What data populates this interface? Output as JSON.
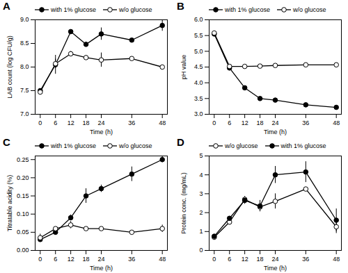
{
  "chart_data": [
    {
      "type": "line",
      "title": "A",
      "x_label": "Time (h)",
      "y_label": "LAB count (log CFU/g)",
      "x": [
        0,
        6,
        12,
        18,
        24,
        36,
        48
      ],
      "xlim": [
        -2,
        50
      ],
      "xticks": [
        0,
        6,
        12,
        18,
        24,
        36,
        48
      ],
      "ylim": [
        7,
        9
      ],
      "yticks": [
        {
          "value": 7,
          "label": "7.0"
        },
        7.5,
        {
          "value": 8,
          "label": "8.0"
        },
        8.5,
        {
          "value": 9,
          "label": "9.0"
        }
      ],
      "legend": "top",
      "series": [
        {
          "name": "with 1% glucose",
          "color": "#000000",
          "marker": "filled_circle",
          "values": [
            7.5,
            8.05,
            8.75,
            8.48,
            8.7,
            8.57,
            8.88
          ],
          "errors": [
            0.02,
            0.2,
            0.03,
            0.05,
            0.13,
            0.03,
            0.12
          ]
        },
        {
          "name": "w/o glucose",
          "color": "#000000",
          "marker": "open_circle",
          "values": [
            7.47,
            8.07,
            8.28,
            8.2,
            8.15,
            8.18,
            8.0
          ],
          "errors": [
            0.05,
            0.1,
            0.05,
            0.05,
            0.15,
            0.03,
            0.03
          ]
        }
      ]
    },
    {
      "type": "line",
      "title": "B",
      "x_label": "Time (h)",
      "y_label": "pH value",
      "x": [
        0,
        6,
        12,
        18,
        24,
        36,
        48
      ],
      "xlim": [
        -2,
        50
      ],
      "xticks": [
        0,
        6,
        12,
        18,
        24,
        36,
        48
      ],
      "ylim": [
        3,
        6
      ],
      "yticks": [
        {
          "value": 3,
          "label": "3.0"
        },
        3.5,
        {
          "value": 4,
          "label": "4.0"
        },
        4.5,
        {
          "value": 5,
          "label": "5.0"
        },
        5.5,
        {
          "value": 6,
          "label": "6.0"
        }
      ],
      "legend": "top",
      "series": [
        {
          "name": "with 1% glucose",
          "color": "#000000",
          "marker": "filled_circle",
          "values": [
            5.55,
            4.47,
            3.84,
            3.5,
            3.45,
            3.3,
            3.22
          ]
        },
        {
          "name": "w/o glucose",
          "color": "#000000",
          "marker": "open_circle",
          "values": [
            5.58,
            4.52,
            4.52,
            4.53,
            4.55,
            4.57,
            4.57
          ]
        }
      ]
    },
    {
      "type": "line",
      "title": "C",
      "x_label": "Time (h)",
      "y_label": "Titratable acidity (%)",
      "x": [
        0,
        6,
        12,
        18,
        24,
        36,
        48
      ],
      "xlim": [
        -2,
        50
      ],
      "xticks": [
        0,
        6,
        12,
        18,
        24,
        36,
        48
      ],
      "ylim": [
        0,
        0.26
      ],
      "yticks": [
        {
          "value": 0,
          "label": "0.00"
        },
        0.05,
        {
          "value": 0.1,
          "label": "0.10"
        },
        0.15,
        {
          "value": 0.2,
          "label": "0.20"
        },
        0.25
      ],
      "legend": "top",
      "series": [
        {
          "name": "with 1% glucose",
          "color": "#000000",
          "marker": "filled_circle",
          "values": [
            0.03,
            0.05,
            0.09,
            0.15,
            0.17,
            0.21,
            0.25
          ],
          "errors": [
            0.005,
            0.005,
            0.008,
            0.02,
            0.01,
            0.02,
            0.008
          ]
        },
        {
          "name": "w/o glucose",
          "color": "#000000",
          "marker": "open_circle",
          "values": [
            0.035,
            0.06,
            0.07,
            0.06,
            0.06,
            0.05,
            0.06
          ],
          "errors": [
            0.01,
            0.005,
            0.01,
            0.005,
            0.005,
            0.005,
            0.01
          ]
        }
      ]
    },
    {
      "type": "line",
      "title": "D",
      "x_label": "Time (h)",
      "y_label": "Protein conc. (mg/mL)",
      "x": [
        0,
        6,
        12,
        18,
        24,
        36,
        48
      ],
      "xlim": [
        -2,
        50
      ],
      "xticks": [
        0,
        6,
        12,
        18,
        24,
        36,
        48
      ],
      "ylim": [
        0,
        5
      ],
      "yticks": [
        0,
        1,
        2,
        3,
        4,
        5
      ],
      "legend": "top",
      "series": [
        {
          "name": "w/o glucose",
          "color": "#000000",
          "marker": "open_circle",
          "values": [
            0.7,
            1.5,
            2.7,
            2.3,
            2.6,
            3.25,
            1.25
          ],
          "errors": [
            0.1,
            0.1,
            0.15,
            0.2,
            0.4,
            0.1,
            0.35
          ]
        },
        {
          "name": "with 1% glucose",
          "color": "#000000",
          "marker": "filled_circle",
          "values": [
            0.75,
            1.7,
            2.65,
            2.35,
            4.0,
            4.15,
            1.6
          ],
          "errors": [
            0.1,
            0.1,
            0.2,
            0.3,
            0.45,
            0.55,
            0.6
          ]
        }
      ]
    }
  ]
}
